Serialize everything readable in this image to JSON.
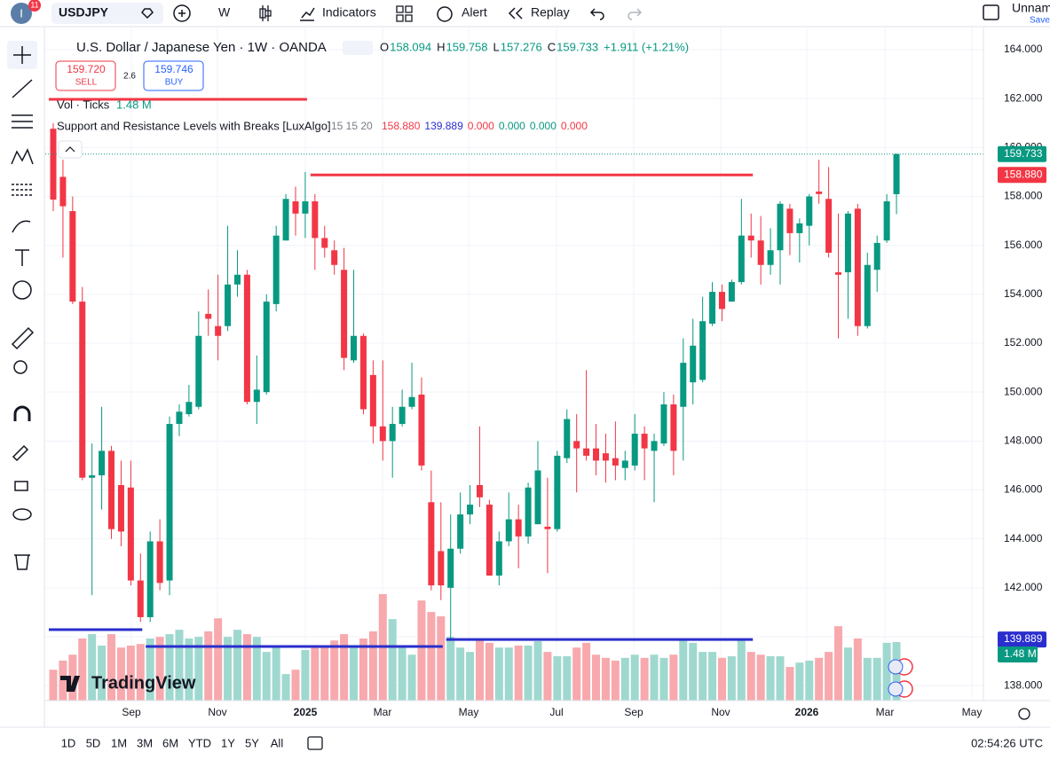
{
  "header": {
    "badge": "11",
    "avatar": "I",
    "symbol": "USDJPY",
    "interval": "W",
    "indicators": "Indicators",
    "alert": "Alert",
    "replay": "Replay",
    "layout_name": "Unnam",
    "save": "Save"
  },
  "legend": {
    "title": "U.S. Dollar / Japanese Yen · 1W · OANDA",
    "ohlc": [
      {
        "key": "O",
        "value": "158.094"
      },
      {
        "key": "H",
        "value": "159.758"
      },
      {
        "key": "L",
        "value": "157.276"
      },
      {
        "key": "C",
        "value": "159.733"
      }
    ],
    "change": "+1.911 (+1.21%)",
    "sell_price": "159.720",
    "sell": "SELL",
    "spread": "2.6",
    "buy_price": "159.746",
    "buy": "BUY",
    "volume_title": "Vol · Ticks",
    "volume_value": "1.48 M",
    "indicator_title": "Support and Resistance Levels with Breaks [LuxAlgo]",
    "indicator_params": "15 15 20",
    "indicator_values": [
      {
        "text": "158.880",
        "color": "#f23645"
      },
      {
        "text": "139.889",
        "color": "#2a2ecd"
      },
      {
        "text": "0.000",
        "color": "#f23645"
      },
      {
        "text": "0.000",
        "color": "#089981"
      },
      {
        "text": "0.000",
        "color": "#089981"
      },
      {
        "text": "0.000",
        "color": "#f23645"
      }
    ]
  },
  "chart_data": {
    "type": "candlestick",
    "up_color": "#089981",
    "down_color": "#f23645",
    "volume_up_color": "#9fd8cf",
    "volume_down_color": "#f7a9ad",
    "ohlc": [
      [
        160.77,
        161.0,
        157.4,
        157.87
      ],
      [
        158.8,
        159.5,
        155.5,
        157.6
      ],
      [
        157.4,
        158.0,
        153.6,
        153.7
      ],
      [
        153.7,
        154.3,
        146.4,
        146.5
      ],
      [
        146.5,
        147.9,
        141.7,
        146.6
      ],
      [
        146.6,
        149.4,
        145.2,
        147.6
      ],
      [
        147.6,
        147.8,
        144.0,
        144.4
      ],
      [
        146.2,
        147.2,
        143.7,
        144.3
      ],
      [
        146.1,
        147.2,
        142.1,
        142.3
      ],
      [
        142.3,
        143.4,
        140.6,
        140.8
      ],
      [
        140.8,
        144.3,
        140.6,
        143.9
      ],
      [
        143.9,
        144.8,
        141.9,
        142.2
      ],
      [
        142.3,
        149.0,
        141.7,
        148.7
      ],
      [
        148.7,
        149.5,
        148.2,
        149.2
      ],
      [
        149.1,
        150.3,
        149.0,
        149.6
      ],
      [
        149.4,
        153.3,
        149.3,
        152.3
      ],
      [
        153.2,
        154.2,
        152.3,
        153.0
      ],
      [
        152.7,
        154.8,
        151.3,
        152.3
      ],
      [
        152.7,
        156.8,
        152.5,
        154.4
      ],
      [
        154.4,
        155.8,
        153.9,
        154.8
      ],
      [
        154.8,
        155.0,
        149.5,
        149.6
      ],
      [
        149.6,
        151.5,
        148.7,
        150.1
      ],
      [
        150.0,
        154.0,
        149.9,
        153.7
      ],
      [
        153.6,
        156.8,
        153.3,
        156.4
      ],
      [
        156.2,
        158.1,
        156.2,
        157.9
      ],
      [
        157.8,
        158.4,
        156.4,
        157.3
      ],
      [
        157.3,
        159.0,
        156.3,
        157.8
      ],
      [
        157.8,
        158.1,
        155.0,
        156.3
      ],
      [
        156.3,
        156.8,
        155.5,
        155.9
      ],
      [
        155.8,
        156.2,
        154.8,
        155.2
      ],
      [
        155.0,
        155.9,
        150.9,
        151.4
      ],
      [
        151.3,
        155.0,
        151.2,
        152.3
      ],
      [
        152.3,
        152.4,
        149.1,
        149.3
      ],
      [
        150.7,
        151.3,
        147.9,
        148.6
      ],
      [
        148.6,
        151.3,
        147.2,
        148.0
      ],
      [
        148.0,
        149.4,
        146.5,
        148.7
      ],
      [
        148.7,
        150.1,
        148.6,
        149.4
      ],
      [
        149.4,
        151.2,
        149.3,
        149.8
      ],
      [
        149.9,
        150.6,
        146.8,
        147.0
      ],
      [
        145.5,
        146.8,
        141.9,
        142.1
      ],
      [
        143.5,
        145.5,
        141.5,
        142.1
      ],
      [
        142.0,
        145.0,
        139.9,
        143.6
      ],
      [
        143.6,
        145.9,
        143.4,
        145.0
      ],
      [
        145.0,
        146.2,
        144.6,
        145.4
      ],
      [
        146.2,
        148.6,
        145.3,
        145.7
      ],
      [
        145.4,
        145.6,
        142.5,
        142.5
      ],
      [
        142.5,
        144.3,
        142.1,
        143.9
      ],
      [
        143.9,
        145.9,
        143.7,
        144.8
      ],
      [
        144.8,
        145.4,
        142.8,
        144.1
      ],
      [
        144.1,
        146.3,
        143.8,
        146.1
      ],
      [
        144.6,
        148.0,
        144.6,
        146.8
      ],
      [
        144.5,
        146.5,
        142.6,
        144.4
      ],
      [
        144.4,
        147.6,
        144.3,
        147.4
      ],
      [
        147.3,
        149.3,
        147.1,
        148.9
      ],
      [
        148.0,
        149.1,
        145.9,
        147.7
      ],
      [
        147.7,
        150.9,
        147.2,
        147.4
      ],
      [
        147.7,
        148.7,
        146.6,
        147.2
      ],
      [
        147.5,
        148.3,
        146.3,
        147.2
      ],
      [
        147.3,
        148.8,
        146.4,
        147.0
      ],
      [
        146.9,
        147.6,
        146.4,
        147.2
      ],
      [
        147.0,
        149.1,
        146.8,
        148.3
      ],
      [
        148.3,
        148.6,
        146.4,
        147.7
      ],
      [
        147.6,
        148.3,
        145.5,
        148.0
      ],
      [
        147.9,
        150.0,
        147.8,
        149.5
      ],
      [
        149.5,
        149.9,
        146.6,
        147.6
      ],
      [
        149.4,
        152.2,
        147.2,
        151.2
      ],
      [
        150.4,
        153.0,
        149.5,
        151.9
      ],
      [
        150.5,
        153.9,
        150.4,
        152.9
      ],
      [
        152.8,
        154.5,
        152.7,
        154.1
      ],
      [
        154.1,
        154.4,
        152.9,
        153.4
      ],
      [
        153.7,
        154.6,
        153.7,
        154.5
      ],
      [
        154.5,
        157.9,
        154.4,
        156.4
      ],
      [
        156.4,
        157.3,
        155.5,
        156.2
      ],
      [
        156.2,
        157.2,
        154.4,
        155.2
      ],
      [
        155.2,
        156.7,
        154.8,
        155.8
      ],
      [
        155.8,
        157.8,
        154.4,
        157.7
      ],
      [
        157.5,
        157.7,
        155.6,
        156.5
      ],
      [
        156.5,
        157.1,
        155.3,
        156.9
      ],
      [
        156.8,
        158.1,
        156.0,
        158.0
      ],
      [
        158.2,
        159.5,
        157.7,
        158.1
      ],
      [
        157.9,
        159.2,
        155.5,
        155.7
      ],
      [
        154.9,
        157.3,
        152.2,
        154.8
      ],
      [
        154.9,
        157.4,
        153.0,
        157.3
      ],
      [
        157.5,
        157.7,
        152.3,
        152.7
      ],
      [
        152.7,
        155.7,
        152.6,
        155.2
      ],
      [
        155.0,
        156.4,
        154.1,
        156.1
      ],
      [
        156.2,
        158.1,
        156.1,
        157.8
      ],
      [
        158.094,
        159.758,
        157.276,
        159.733
      ]
    ],
    "volume": [
      0.78,
      1.01,
      1.16,
      1.57,
      1.68,
      1.39,
      1.68,
      1.34,
      1.39,
      1.43,
      1.57,
      1.61,
      1.68,
      1.79,
      1.57,
      1.61,
      1.75,
      2.08,
      1.61,
      1.79,
      1.68,
      1.61,
      1.23,
      1.34,
      0.67,
      0.78,
      1.28,
      1.34,
      1.39,
      1.52,
      1.68,
      1.34,
      1.57,
      1.75,
      2.69,
      2.06,
      1.39,
      1.16,
      2.53,
      2.24,
      2.13,
      1.61,
      1.34,
      1.23,
      1.52,
      1.46,
      1.34,
      1.34,
      1.39,
      1.39,
      1.5,
      1.23,
      1.12,
      1.12,
      1.34,
      1.46,
      1.16,
      1.08,
      1.01,
      1.08,
      1.16,
      1.08,
      1.16,
      1.08,
      1.16,
      1.52,
      1.46,
      1.23,
      1.23,
      1.08,
      1.12,
      1.52,
      1.23,
      1.16,
      1.12,
      1.12,
      0.85,
      0.96,
      1.01,
      1.08,
      1.23,
      1.88,
      1.34,
      1.57,
      1.08,
      1.08,
      1.46,
      1.48
    ],
    "volume_lim": [
      0,
      16.7
    ],
    "ylim": [
      137.39,
      164.4
    ],
    "yticks": [
      {
        "value": 138,
        "label": "138.000"
      },
      {
        "value": 140,
        "label": "140.000"
      },
      {
        "value": 142,
        "label": "142.000"
      },
      {
        "value": 144,
        "label": "144.000"
      },
      {
        "value": 146,
        "label": "146.000"
      },
      {
        "value": 148,
        "label": "148.000"
      },
      {
        "value": 150,
        "label": "150.000"
      },
      {
        "value": 152,
        "label": "152.000"
      },
      {
        "value": 154,
        "label": "154.000"
      },
      {
        "value": 156,
        "label": "156.000"
      },
      {
        "value": 158,
        "label": "158.000"
      },
      {
        "value": 160,
        "label": "160.000"
      },
      {
        "value": 162,
        "label": "162.000"
      },
      {
        "value": 164,
        "label": "164.000"
      }
    ],
    "x_labels": [
      "Sep",
      "Nov",
      "2025",
      "Mar",
      "May",
      "Jul",
      "Sep",
      "Nov",
      "2026",
      "Mar",
      "May"
    ],
    "levels": [
      {
        "price": 161.97,
        "from": 0,
        "to": 26,
        "color": "#f23645"
      },
      {
        "price": 158.88,
        "from": 27,
        "to": 72,
        "color": "#f23645"
      },
      {
        "price": 140.29,
        "from": 0,
        "to": 9,
        "color": "#2a2ecd"
      },
      {
        "price": 139.6,
        "from": 10,
        "to": 40,
        "color": "#2a2ecd"
      },
      {
        "price": 139.889,
        "from": 41,
        "to": 72,
        "color": "#2a2ecd"
      }
    ],
    "price_labels": [
      {
        "value": 159.733,
        "label": "159.733",
        "color": "#089981"
      },
      {
        "value": 158.88,
        "label": "158.880",
        "color": "#f23645"
      },
      {
        "value": 139.889,
        "label": "139.889",
        "color": "#2a2ecd"
      }
    ],
    "grid": true
  },
  "watermark": "TradingView",
  "ranges": [
    "1D",
    "5D",
    "1M",
    "3M",
    "6M",
    "YTD",
    "1Y",
    "5Y",
    "All"
  ],
  "clock": "02:54:26 UTC"
}
